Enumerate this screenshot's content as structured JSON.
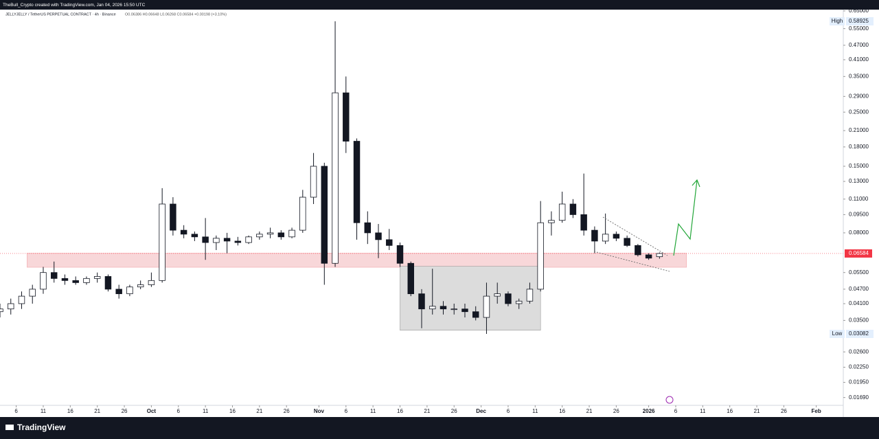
{
  "header": {
    "credit": "TheBull_Crypto created with TradingView.com, Jan 04, 2026 15:50 UTC",
    "symbol": "JELLYJELLY / TetherUS PERPETUAL CONTRACT · 4h · Binance",
    "ohlc": "O0.06386  H0.06648  L0.06268  C0.06584  +0.00198 (+3.10%)"
  },
  "footer": {
    "brand": "TradingView"
  },
  "chart_data": {
    "type": "candlestick",
    "log": true,
    "grid": false,
    "up_color": "#ffffff",
    "down_color": "#131722",
    "xlim": [
      "Sep 3",
      "Feb 6"
    ],
    "ylim": [
      0.0157,
      0.658
    ],
    "x": [
      "Sep 3",
      "Sep 5",
      "Sep 7",
      "Sep 9",
      "Sep 11",
      "Sep 13",
      "Sep 15",
      "Sep 17",
      "Sep 19",
      "Sep 21",
      "Sep 23",
      "Sep 25",
      "Sep 27",
      "Sep 29",
      "Oct 1",
      "Oct 3",
      "Oct 5",
      "Oct 7",
      "Oct 9",
      "Oct 11",
      "Oct 13",
      "Oct 15",
      "Oct 17",
      "Oct 19",
      "Oct 21",
      "Oct 23",
      "Oct 25",
      "Oct 27",
      "Oct 29",
      "Oct 31",
      "Nov 2",
      "Nov 4",
      "Nov 6",
      "Nov 8",
      "Nov 10",
      "Nov 12",
      "Nov 14",
      "Nov 16",
      "Nov 18",
      "Nov 20",
      "Nov 22",
      "Nov 24",
      "Nov 26",
      "Nov 28",
      "Nov 30",
      "Dec 2",
      "Dec 4",
      "Dec 6",
      "Dec 8",
      "Dec 10",
      "Dec 12",
      "Dec 14",
      "Dec 16",
      "Dec 18",
      "Dec 20",
      "Dec 22",
      "Dec 24",
      "Dec 26",
      "Dec 28",
      "Dec 30",
      "Jan 1",
      "Jan 3"
    ],
    "open": [
      0.038,
      0.039,
      0.041,
      0.044,
      0.047,
      0.055,
      0.052,
      0.051,
      0.05,
      0.052,
      0.053,
      0.047,
      0.045,
      0.048,
      0.049,
      0.051,
      0.105,
      0.082,
      0.079,
      0.077,
      0.073,
      0.076,
      0.074,
      0.073,
      0.077,
      0.079,
      0.08,
      0.077,
      0.082,
      0.112,
      0.15,
      0.06,
      0.3,
      0.19,
      0.088,
      0.08,
      0.075,
      0.071,
      0.06,
      0.045,
      0.039,
      0.04,
      0.039,
      0.039,
      0.038,
      0.036,
      0.044,
      0.045,
      0.041,
      0.042,
      0.047,
      0.088,
      0.09,
      0.105,
      0.095,
      0.082,
      0.074,
      0.079,
      0.076,
      0.071,
      0.065,
      0.06386
    ],
    "high": [
      0.041,
      0.043,
      0.046,
      0.049,
      0.058,
      0.061,
      0.054,
      0.053,
      0.053,
      0.055,
      0.054,
      0.049,
      0.049,
      0.051,
      0.055,
      0.122,
      0.112,
      0.086,
      0.081,
      0.092,
      0.078,
      0.08,
      0.077,
      0.078,
      0.081,
      0.084,
      0.082,
      0.084,
      0.12,
      0.17,
      0.155,
      0.58925,
      0.35,
      0.195,
      0.098,
      0.087,
      0.083,
      0.073,
      0.061,
      0.047,
      0.057,
      0.042,
      0.041,
      0.041,
      0.04,
      0.05,
      0.05,
      0.046,
      0.043,
      0.05,
      0.108,
      0.098,
      0.118,
      0.11,
      0.14,
      0.085,
      0.096,
      0.081,
      0.078,
      0.072,
      0.066,
      0.06648
    ],
    "low": [
      0.036,
      0.037,
      0.039,
      0.041,
      0.045,
      0.05,
      0.049,
      0.049,
      0.049,
      0.05,
      0.046,
      0.043,
      0.044,
      0.047,
      0.048,
      0.05,
      0.078,
      0.076,
      0.074,
      0.062,
      0.068,
      0.066,
      0.071,
      0.072,
      0.075,
      0.076,
      0.075,
      0.076,
      0.08,
      0.105,
      0.049,
      0.058,
      0.17,
      0.075,
      0.072,
      0.063,
      0.068,
      0.058,
      0.044,
      0.0325,
      0.037,
      0.037,
      0.037,
      0.036,
      0.035,
      0.03082,
      0.041,
      0.04,
      0.039,
      0.041,
      0.046,
      0.078,
      0.088,
      0.092,
      0.078,
      0.066,
      0.072,
      0.074,
      0.07,
      0.064,
      0.062,
      0.06268
    ],
    "close": [
      0.039,
      0.041,
      0.044,
      0.047,
      0.055,
      0.052,
      0.051,
      0.05,
      0.052,
      0.053,
      0.047,
      0.045,
      0.048,
      0.049,
      0.051,
      0.105,
      0.082,
      0.079,
      0.077,
      0.073,
      0.076,
      0.074,
      0.073,
      0.077,
      0.079,
      0.08,
      0.077,
      0.082,
      0.112,
      0.15,
      0.06,
      0.3,
      0.19,
      0.088,
      0.08,
      0.075,
      0.071,
      0.06,
      0.045,
      0.039,
      0.04,
      0.039,
      0.039,
      0.038,
      0.036,
      0.044,
      0.045,
      0.041,
      0.042,
      0.047,
      0.088,
      0.09,
      0.105,
      0.095,
      0.082,
      0.074,
      0.079,
      0.076,
      0.071,
      0.065,
      0.063,
      0.06584
    ],
    "yticks": [
      {
        "value": 0.65,
        "label": "0.65000"
      },
      {
        "value": 0.55,
        "label": "0.55000"
      },
      {
        "value": 0.47,
        "label": "0.47000"
      },
      {
        "value": 0.41,
        "label": "0.41000"
      },
      {
        "value": 0.35,
        "label": "0.35000"
      },
      {
        "value": 0.29,
        "label": "0.29000"
      },
      {
        "value": 0.25,
        "label": "0.25000"
      },
      {
        "value": 0.21,
        "label": "0.21000"
      },
      {
        "value": 0.18,
        "label": "0.18000"
      },
      {
        "value": 0.15,
        "label": "0.15000"
      },
      {
        "value": 0.13,
        "label": "0.13000"
      },
      {
        "value": 0.11,
        "label": "0.11000"
      },
      {
        "value": 0.095,
        "label": "0.09500"
      },
      {
        "value": 0.08,
        "label": "0.08000"
      },
      {
        "value": 0.055,
        "label": "0.05500"
      },
      {
        "value": 0.047,
        "label": "0.04700"
      },
      {
        "value": 0.041,
        "label": "0.04100"
      },
      {
        "value": 0.035,
        "label": "0.03500"
      },
      {
        "value": 0.026,
        "label": "0.02600"
      },
      {
        "value": 0.0225,
        "label": "0.02250"
      },
      {
        "value": 0.0195,
        "label": "0.01950"
      },
      {
        "value": 0.0169,
        "label": "0.01690"
      }
    ],
    "xticks": [
      {
        "value": "Sep 6",
        "label": "6"
      },
      {
        "value": "Sep 11",
        "label": "11"
      },
      {
        "value": "Sep 16",
        "label": "16"
      },
      {
        "value": "Sep 21",
        "label": "21"
      },
      {
        "value": "Sep 26",
        "label": "26"
      },
      {
        "value": "Oct 1",
        "label": "Oct"
      },
      {
        "value": "Oct 6",
        "label": "6"
      },
      {
        "value": "Oct 11",
        "label": "11"
      },
      {
        "value": "Oct 16",
        "label": "16"
      },
      {
        "value": "Oct 21",
        "label": "21"
      },
      {
        "value": "Oct 26",
        "label": "26"
      },
      {
        "value": "Nov 1",
        "label": "Nov"
      },
      {
        "value": "Nov 6",
        "label": "6"
      },
      {
        "value": "Nov 11",
        "label": "11"
      },
      {
        "value": "Nov 16",
        "label": "16"
      },
      {
        "value": "Nov 21",
        "label": "21"
      },
      {
        "value": "Nov 26",
        "label": "26"
      },
      {
        "value": "Dec 1",
        "label": "Dec"
      },
      {
        "value": "Dec 6",
        "label": "6"
      },
      {
        "value": "Dec 11",
        "label": "11"
      },
      {
        "value": "Dec 16",
        "label": "16"
      },
      {
        "value": "Dec 21",
        "label": "21"
      },
      {
        "value": "Dec 26",
        "label": "26"
      },
      {
        "value": "Jan 1",
        "label": "2026"
      },
      {
        "value": "Jan 6",
        "label": "6"
      },
      {
        "value": "Jan 11",
        "label": "11"
      },
      {
        "value": "Jan 16",
        "label": "16"
      },
      {
        "value": "Jan 21",
        "label": "21"
      },
      {
        "value": "Jan 26",
        "label": "26"
      },
      {
        "value": "Feb 1",
        "label": "Feb"
      }
    ],
    "high_marker": {
      "label": "High",
      "value": 0.58925
    },
    "low_marker": {
      "label": "Low",
      "value": 0.03082
    },
    "last_price": {
      "value": 0.06584,
      "color": "#f23645"
    },
    "zones": [
      {
        "from": "Sep 8",
        "to": "Jan 8",
        "low": 0.0578,
        "high": 0.066,
        "color": "#f8d7d9"
      },
      {
        "from": "Nov 16",
        "to": "Dec 12",
        "low": 0.0319,
        "high": 0.0583,
        "color": "#dcdcdc"
      }
    ]
  }
}
